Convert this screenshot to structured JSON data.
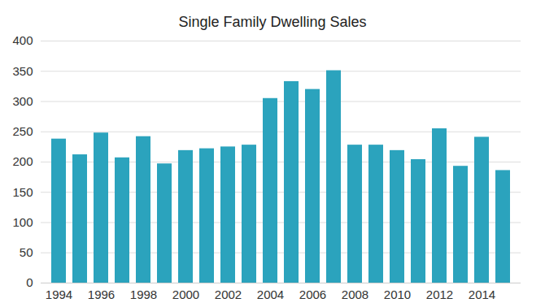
{
  "chart_data": {
    "type": "bar",
    "title": "Single Family Dwelling Sales",
    "categories": [
      "1994",
      null,
      "1996",
      null,
      "1998",
      null,
      "2000",
      null,
      "2002",
      null,
      "2004",
      null,
      "2006",
      null,
      "2008",
      null,
      "2010",
      null,
      "2012",
      null,
      "2014",
      null
    ],
    "values": [
      238,
      212,
      248,
      207,
      242,
      197,
      219,
      222,
      225,
      228,
      305,
      333,
      320,
      351,
      228,
      228,
      219,
      204,
      255,
      193,
      241,
      186
    ],
    "color": "#2ba3bd",
    "ylim": [
      0,
      400
    ],
    "yticks": [
      0,
      50,
      100,
      150,
      200,
      250,
      300,
      350,
      400
    ],
    "grid": true
  }
}
